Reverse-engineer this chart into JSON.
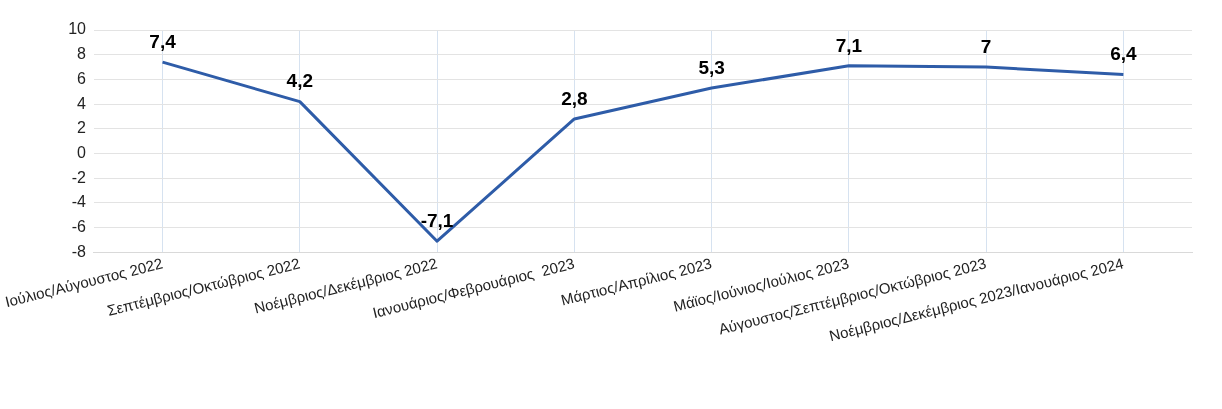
{
  "chart_data": {
    "type": "line",
    "categories": [
      "Ιούλιος/Αύγουστος 2022",
      "Σεπτέμβριος/Οκτώβριος 2022",
      "Νοέμβριος/Δεκέμβριος 2022",
      "Ιανουάριος/Φεβρουάριος  2023",
      "Μάρτιος/Απρίλιος 2023",
      "Μάϊος/Ιούνιος/Ιούλιος 2023",
      "Αύγουστος/Σεπτέμβριος/Οκτώβριος 2023",
      "Νοέμβριος/Δεκέμβριος 2023/Ιανουάριος 2024"
    ],
    "values": [
      7.4,
      4.2,
      -7.1,
      2.8,
      5.3,
      7.1,
      7,
      6.4
    ],
    "value_labels": [
      "7,4",
      "4,2",
      "-7,1",
      "2,8",
      "5,3",
      "7,1",
      "7",
      "6,4"
    ],
    "color": "#2e5ca8",
    "ylim": [
      -8,
      10
    ],
    "yticks": [
      -8,
      -6,
      -4,
      -2,
      0,
      2,
      4,
      6,
      8,
      10
    ],
    "grid": true,
    "legend": false,
    "marker": "none",
    "line_style": "solid"
  }
}
